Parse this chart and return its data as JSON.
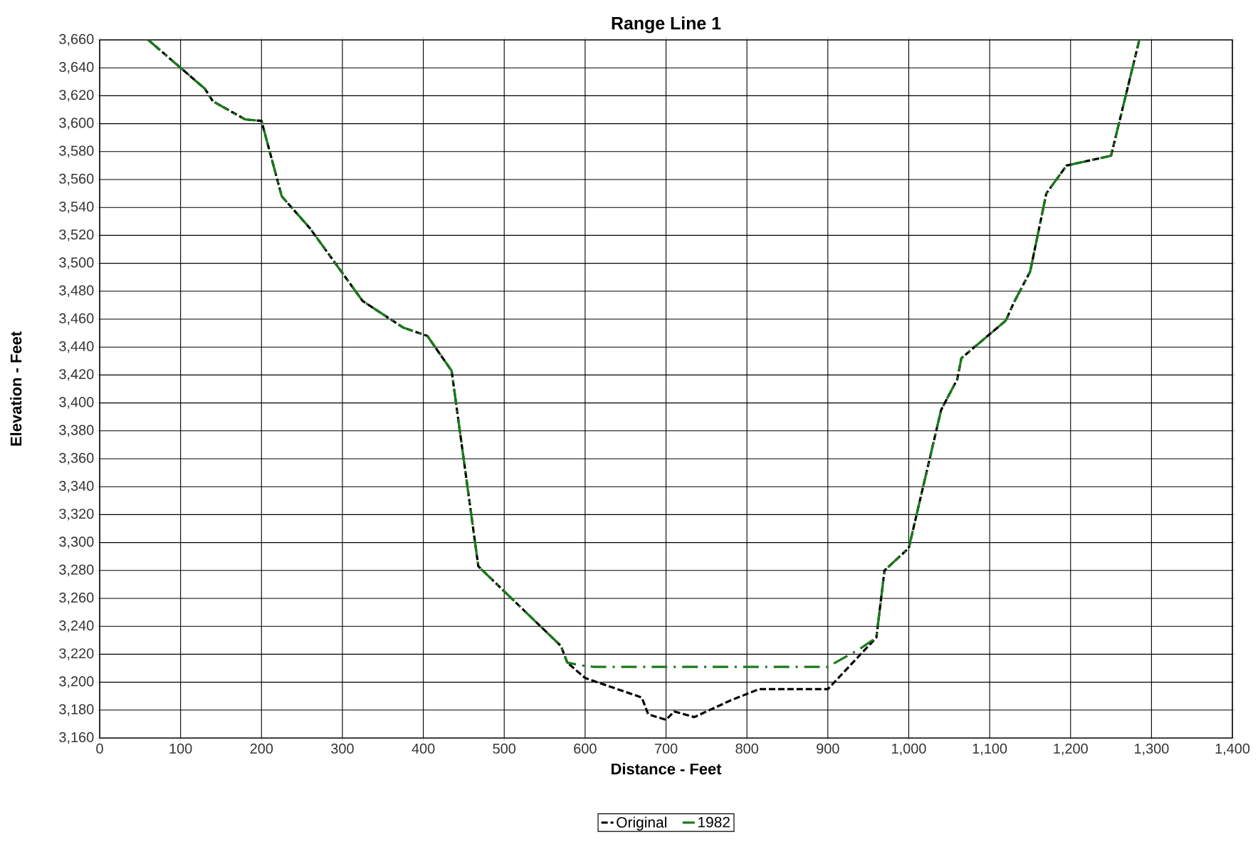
{
  "chart_data": {
    "type": "line",
    "title": "Range Line 1",
    "xlabel": "Distance - Feet",
    "ylabel": "Elevation - Feet",
    "series": [
      {
        "name": "Original",
        "color": "#000000",
        "line_style": "dashed",
        "x": [
          60,
          100,
          130,
          140,
          180,
          200,
          225,
          260,
          325,
          375,
          405,
          435,
          468,
          500,
          570,
          578,
          600,
          640,
          670,
          678,
          700,
          710,
          735,
          780,
          815,
          900,
          960,
          970,
          1000,
          1040,
          1060,
          1065,
          1120,
          1130,
          1150,
          1170,
          1195,
          1250,
          1285
        ],
        "values": [
          3660,
          3640,
          3625,
          3616,
          3603,
          3602,
          3548,
          3525,
          3473,
          3454,
          3448,
          3423,
          3283,
          3265,
          3226,
          3214,
          3203,
          3195,
          3189,
          3177,
          3173,
          3179,
          3175,
          3187,
          3195,
          3195,
          3232,
          3280,
          3296,
          3395,
          3417,
          3432,
          3459,
          3472,
          3494,
          3550,
          3570,
          3577,
          3660
        ]
      },
      {
        "name": "1982",
        "color": "#1a7a1a",
        "line_style": "dashdot",
        "x": [
          60,
          100,
          130,
          140,
          180,
          200,
          225,
          260,
          325,
          375,
          405,
          435,
          468,
          500,
          570,
          578,
          595,
          610,
          900,
          940,
          960,
          970,
          1000,
          1040,
          1060,
          1065,
          1120,
          1130,
          1150,
          1170,
          1195,
          1250,
          1285
        ],
        "values": [
          3660,
          3640,
          3625,
          3616,
          3603,
          3602,
          3548,
          3525,
          3473,
          3454,
          3448,
          3423,
          3283,
          3265,
          3226,
          3214,
          3212,
          3211,
          3211,
          3224,
          3232,
          3280,
          3296,
          3395,
          3417,
          3432,
          3459,
          3472,
          3494,
          3550,
          3570,
          3577,
          3660
        ]
      }
    ],
    "xlim": [
      0,
      1400
    ],
    "xticks": [
      0,
      100,
      200,
      300,
      400,
      500,
      600,
      700,
      800,
      900,
      {
        "value": 1000,
        "label": "1,000"
      },
      {
        "value": 1100,
        "label": "1,100"
      },
      {
        "value": 1200,
        "label": "1,200"
      },
      {
        "value": 1300,
        "label": "1,300"
      },
      {
        "value": 1400,
        "label": "1,400"
      }
    ],
    "ylim": [
      3160,
      3660
    ],
    "yticks": [
      {
        "value": 3160,
        "label": "3,160"
      },
      {
        "value": 3180,
        "label": "3,180"
      },
      {
        "value": 3200,
        "label": "3,200"
      },
      {
        "value": 3220,
        "label": "3,220"
      },
      {
        "value": 3240,
        "label": "3,240"
      },
      {
        "value": 3260,
        "label": "3,260"
      },
      {
        "value": 3280,
        "label": "3,280"
      },
      {
        "value": 3300,
        "label": "3,300"
      },
      {
        "value": 3320,
        "label": "3,320"
      },
      {
        "value": 3340,
        "label": "3,340"
      },
      {
        "value": 3360,
        "label": "3,360"
      },
      {
        "value": 3380,
        "label": "3,380"
      },
      {
        "value": 3400,
        "label": "3,400"
      },
      {
        "value": 3420,
        "label": "3,420"
      },
      {
        "value": 3440,
        "label": "3,440"
      },
      {
        "value": 3460,
        "label": "3,460"
      },
      {
        "value": 3480,
        "label": "3,480"
      },
      {
        "value": 3500,
        "label": "3,500"
      },
      {
        "value": 3520,
        "label": "3,520"
      },
      {
        "value": 3540,
        "label": "3,540"
      },
      {
        "value": 3560,
        "label": "3,560"
      },
      {
        "value": 3580,
        "label": "3,580"
      },
      {
        "value": 3600,
        "label": "3,600"
      },
      {
        "value": 3620,
        "label": "3,620"
      },
      {
        "value": 3640,
        "label": "3,640"
      },
      {
        "value": 3660,
        "label": "3,660"
      }
    ],
    "grid": true,
    "legend": "bottom",
    "marker": "none"
  }
}
